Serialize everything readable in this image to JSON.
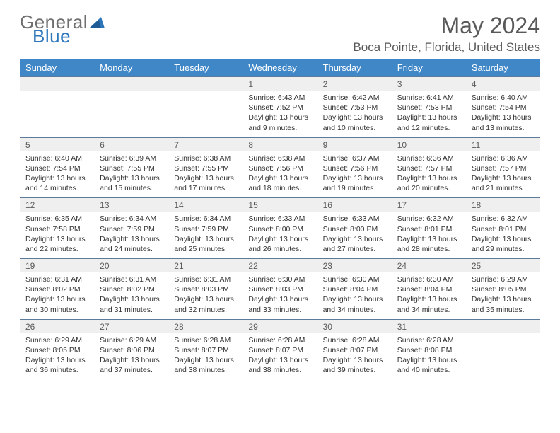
{
  "brand": {
    "general": "General",
    "blue": "Blue"
  },
  "title": "May 2024",
  "location": "Boca Pointe, Florida, United States",
  "colors": {
    "header_bg": "#3f87c7",
    "header_text": "#ffffff",
    "numrow_bg": "#efefef",
    "numrow_border": "#5c7a99",
    "title_color": "#595959",
    "logo_blue": "#2f77bb",
    "logo_gray": "#6f6f6f"
  },
  "day_names": [
    "Sunday",
    "Monday",
    "Tuesday",
    "Wednesday",
    "Thursday",
    "Friday",
    "Saturday"
  ],
  "weeks": [
    {
      "nums": [
        "",
        "",
        "",
        "1",
        "2",
        "3",
        "4"
      ],
      "cells": [
        null,
        null,
        null,
        {
          "sunrise": "Sunrise: 6:43 AM",
          "sunset": "Sunset: 7:52 PM",
          "daylight1": "Daylight: 13 hours",
          "daylight2": "and 9 minutes."
        },
        {
          "sunrise": "Sunrise: 6:42 AM",
          "sunset": "Sunset: 7:53 PM",
          "daylight1": "Daylight: 13 hours",
          "daylight2": "and 10 minutes."
        },
        {
          "sunrise": "Sunrise: 6:41 AM",
          "sunset": "Sunset: 7:53 PM",
          "daylight1": "Daylight: 13 hours",
          "daylight2": "and 12 minutes."
        },
        {
          "sunrise": "Sunrise: 6:40 AM",
          "sunset": "Sunset: 7:54 PM",
          "daylight1": "Daylight: 13 hours",
          "daylight2": "and 13 minutes."
        }
      ]
    },
    {
      "nums": [
        "5",
        "6",
        "7",
        "8",
        "9",
        "10",
        "11"
      ],
      "cells": [
        {
          "sunrise": "Sunrise: 6:40 AM",
          "sunset": "Sunset: 7:54 PM",
          "daylight1": "Daylight: 13 hours",
          "daylight2": "and 14 minutes."
        },
        {
          "sunrise": "Sunrise: 6:39 AM",
          "sunset": "Sunset: 7:55 PM",
          "daylight1": "Daylight: 13 hours",
          "daylight2": "and 15 minutes."
        },
        {
          "sunrise": "Sunrise: 6:38 AM",
          "sunset": "Sunset: 7:55 PM",
          "daylight1": "Daylight: 13 hours",
          "daylight2": "and 17 minutes."
        },
        {
          "sunrise": "Sunrise: 6:38 AM",
          "sunset": "Sunset: 7:56 PM",
          "daylight1": "Daylight: 13 hours",
          "daylight2": "and 18 minutes."
        },
        {
          "sunrise": "Sunrise: 6:37 AM",
          "sunset": "Sunset: 7:56 PM",
          "daylight1": "Daylight: 13 hours",
          "daylight2": "and 19 minutes."
        },
        {
          "sunrise": "Sunrise: 6:36 AM",
          "sunset": "Sunset: 7:57 PM",
          "daylight1": "Daylight: 13 hours",
          "daylight2": "and 20 minutes."
        },
        {
          "sunrise": "Sunrise: 6:36 AM",
          "sunset": "Sunset: 7:57 PM",
          "daylight1": "Daylight: 13 hours",
          "daylight2": "and 21 minutes."
        }
      ]
    },
    {
      "nums": [
        "12",
        "13",
        "14",
        "15",
        "16",
        "17",
        "18"
      ],
      "cells": [
        {
          "sunrise": "Sunrise: 6:35 AM",
          "sunset": "Sunset: 7:58 PM",
          "daylight1": "Daylight: 13 hours",
          "daylight2": "and 22 minutes."
        },
        {
          "sunrise": "Sunrise: 6:34 AM",
          "sunset": "Sunset: 7:59 PM",
          "daylight1": "Daylight: 13 hours",
          "daylight2": "and 24 minutes."
        },
        {
          "sunrise": "Sunrise: 6:34 AM",
          "sunset": "Sunset: 7:59 PM",
          "daylight1": "Daylight: 13 hours",
          "daylight2": "and 25 minutes."
        },
        {
          "sunrise": "Sunrise: 6:33 AM",
          "sunset": "Sunset: 8:00 PM",
          "daylight1": "Daylight: 13 hours",
          "daylight2": "and 26 minutes."
        },
        {
          "sunrise": "Sunrise: 6:33 AM",
          "sunset": "Sunset: 8:00 PM",
          "daylight1": "Daylight: 13 hours",
          "daylight2": "and 27 minutes."
        },
        {
          "sunrise": "Sunrise: 6:32 AM",
          "sunset": "Sunset: 8:01 PM",
          "daylight1": "Daylight: 13 hours",
          "daylight2": "and 28 minutes."
        },
        {
          "sunrise": "Sunrise: 6:32 AM",
          "sunset": "Sunset: 8:01 PM",
          "daylight1": "Daylight: 13 hours",
          "daylight2": "and 29 minutes."
        }
      ]
    },
    {
      "nums": [
        "19",
        "20",
        "21",
        "22",
        "23",
        "24",
        "25"
      ],
      "cells": [
        {
          "sunrise": "Sunrise: 6:31 AM",
          "sunset": "Sunset: 8:02 PM",
          "daylight1": "Daylight: 13 hours",
          "daylight2": "and 30 minutes."
        },
        {
          "sunrise": "Sunrise: 6:31 AM",
          "sunset": "Sunset: 8:02 PM",
          "daylight1": "Daylight: 13 hours",
          "daylight2": "and 31 minutes."
        },
        {
          "sunrise": "Sunrise: 6:31 AM",
          "sunset": "Sunset: 8:03 PM",
          "daylight1": "Daylight: 13 hours",
          "daylight2": "and 32 minutes."
        },
        {
          "sunrise": "Sunrise: 6:30 AM",
          "sunset": "Sunset: 8:03 PM",
          "daylight1": "Daylight: 13 hours",
          "daylight2": "and 33 minutes."
        },
        {
          "sunrise": "Sunrise: 6:30 AM",
          "sunset": "Sunset: 8:04 PM",
          "daylight1": "Daylight: 13 hours",
          "daylight2": "and 34 minutes."
        },
        {
          "sunrise": "Sunrise: 6:30 AM",
          "sunset": "Sunset: 8:04 PM",
          "daylight1": "Daylight: 13 hours",
          "daylight2": "and 34 minutes."
        },
        {
          "sunrise": "Sunrise: 6:29 AM",
          "sunset": "Sunset: 8:05 PM",
          "daylight1": "Daylight: 13 hours",
          "daylight2": "and 35 minutes."
        }
      ]
    },
    {
      "nums": [
        "26",
        "27",
        "28",
        "29",
        "30",
        "31",
        ""
      ],
      "cells": [
        {
          "sunrise": "Sunrise: 6:29 AM",
          "sunset": "Sunset: 8:05 PM",
          "daylight1": "Daylight: 13 hours",
          "daylight2": "and 36 minutes."
        },
        {
          "sunrise": "Sunrise: 6:29 AM",
          "sunset": "Sunset: 8:06 PM",
          "daylight1": "Daylight: 13 hours",
          "daylight2": "and 37 minutes."
        },
        {
          "sunrise": "Sunrise: 6:28 AM",
          "sunset": "Sunset: 8:07 PM",
          "daylight1": "Daylight: 13 hours",
          "daylight2": "and 38 minutes."
        },
        {
          "sunrise": "Sunrise: 6:28 AM",
          "sunset": "Sunset: 8:07 PM",
          "daylight1": "Daylight: 13 hours",
          "daylight2": "and 38 minutes."
        },
        {
          "sunrise": "Sunrise: 6:28 AM",
          "sunset": "Sunset: 8:07 PM",
          "daylight1": "Daylight: 13 hours",
          "daylight2": "and 39 minutes."
        },
        {
          "sunrise": "Sunrise: 6:28 AM",
          "sunset": "Sunset: 8:08 PM",
          "daylight1": "Daylight: 13 hours",
          "daylight2": "and 40 minutes."
        },
        null
      ]
    }
  ]
}
